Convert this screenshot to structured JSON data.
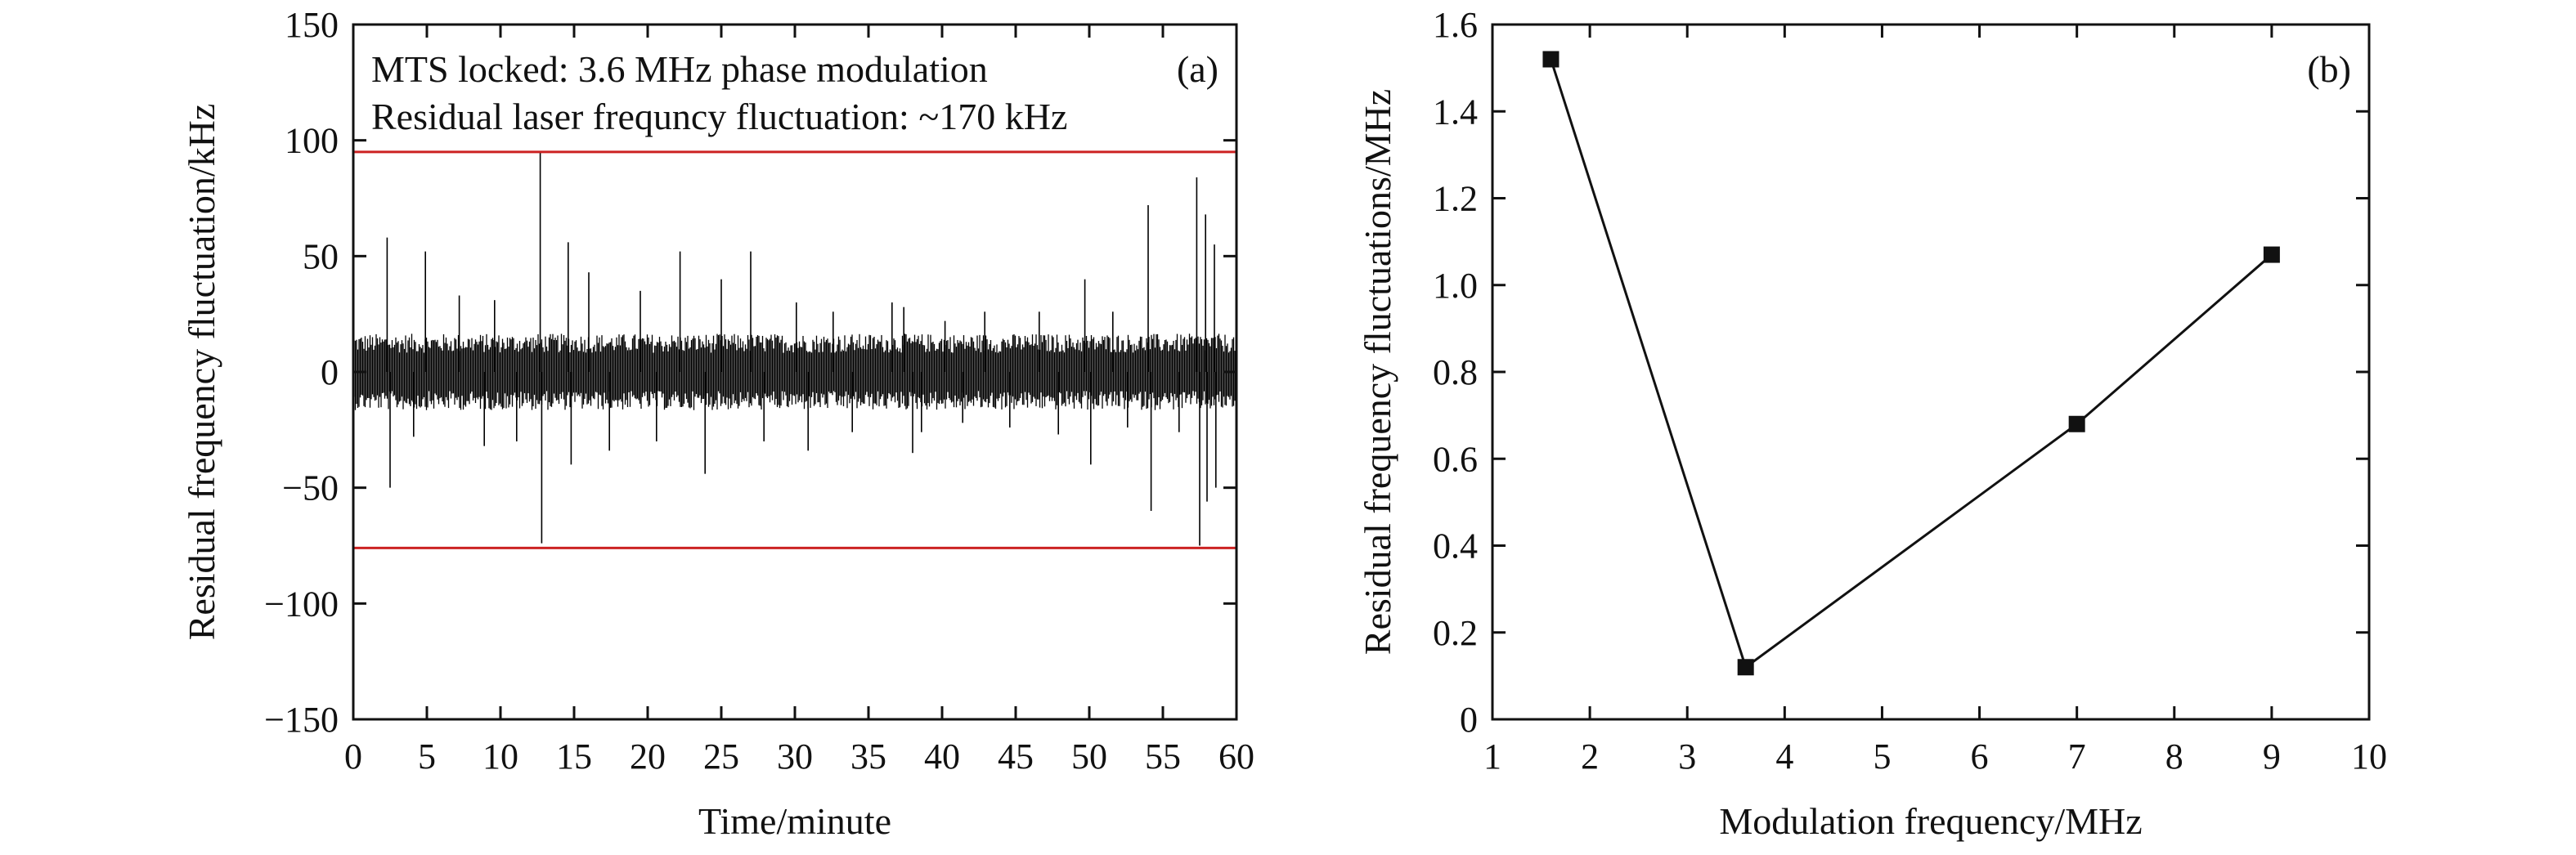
{
  "colors": {
    "axis": "#111111",
    "signal": "#000000",
    "reference_lines": "#cc2222",
    "markers": "#111111"
  },
  "chart_data": [
    {
      "type": "line",
      "panel_label": "(a)",
      "xlabel": "Time/minute",
      "ylabel": "Residual frequency fluctuation/kHz",
      "xlim": [
        0,
        60
      ],
      "ylim": [
        -150,
        150
      ],
      "xticks": [
        0,
        5,
        10,
        15,
        20,
        25,
        30,
        35,
        40,
        45,
        50,
        55,
        60
      ],
      "yticks": [
        -150,
        -100,
        -50,
        0,
        50,
        100,
        150
      ],
      "xtick_labels": [
        "0",
        "5",
        "10",
        "15",
        "20",
        "25",
        "30",
        "35",
        "40",
        "45",
        "50",
        "55",
        "60"
      ],
      "ytick_labels": [
        "−150",
        "−100",
        "−50",
        "0",
        "50",
        "100",
        "150"
      ],
      "annotations": [
        "MTS locked: 3.6 MHz phase modulation",
        "Residual laser frequncy fluctuation: ~170 kHz"
      ],
      "reference_lines": [
        95,
        -76
      ],
      "noise_band": {
        "upper": 15,
        "lower": -15
      },
      "spikes": [
        {
          "x": 2.3,
          "y": 58
        },
        {
          "x": 2.5,
          "y": -50
        },
        {
          "x": 4.1,
          "y": -28
        },
        {
          "x": 4.9,
          "y": 52
        },
        {
          "x": 7.2,
          "y": 33
        },
        {
          "x": 8.9,
          "y": -32
        },
        {
          "x": 9.6,
          "y": 31
        },
        {
          "x": 11.1,
          "y": -30
        },
        {
          "x": 12.7,
          "y": 95
        },
        {
          "x": 12.8,
          "y": -74
        },
        {
          "x": 14.6,
          "y": 56
        },
        {
          "x": 14.8,
          "y": -40
        },
        {
          "x": 16.0,
          "y": 43
        },
        {
          "x": 17.4,
          "y": -34
        },
        {
          "x": 19.5,
          "y": 35
        },
        {
          "x": 20.6,
          "y": -30
        },
        {
          "x": 22.2,
          "y": 52
        },
        {
          "x": 23.9,
          "y": -44
        },
        {
          "x": 25.0,
          "y": 40
        },
        {
          "x": 27.0,
          "y": 52
        },
        {
          "x": 27.9,
          "y": -30
        },
        {
          "x": 30.1,
          "y": 30
        },
        {
          "x": 30.9,
          "y": -34
        },
        {
          "x": 32.6,
          "y": 26
        },
        {
          "x": 33.9,
          "y": -26
        },
        {
          "x": 36.6,
          "y": 30
        },
        {
          "x": 37.4,
          "y": 28
        },
        {
          "x": 38.0,
          "y": -35
        },
        {
          "x": 38.6,
          "y": -26
        },
        {
          "x": 40.2,
          "y": 22
        },
        {
          "x": 41.4,
          "y": -22
        },
        {
          "x": 42.9,
          "y": 26
        },
        {
          "x": 44.6,
          "y": -24
        },
        {
          "x": 46.6,
          "y": 26
        },
        {
          "x": 47.9,
          "y": -27
        },
        {
          "x": 49.7,
          "y": 40
        },
        {
          "x": 50.1,
          "y": -40
        },
        {
          "x": 51.6,
          "y": 26
        },
        {
          "x": 52.6,
          "y": -24
        },
        {
          "x": 54.0,
          "y": 72
        },
        {
          "x": 54.2,
          "y": -60
        },
        {
          "x": 56.1,
          "y": -26
        },
        {
          "x": 57.3,
          "y": 84
        },
        {
          "x": 57.5,
          "y": -75
        },
        {
          "x": 57.9,
          "y": 68
        },
        {
          "x": 58.0,
          "y": -56
        },
        {
          "x": 58.5,
          "y": 55
        },
        {
          "x": 58.6,
          "y": -50
        }
      ]
    },
    {
      "type": "line",
      "panel_label": "(b)",
      "xlabel": "Modulation frequency/MHz",
      "ylabel": "Residual frequency fluctuations/MHz",
      "xlim": [
        1,
        10
      ],
      "ylim": [
        0,
        1.6
      ],
      "xticks": [
        1,
        2,
        3,
        4,
        5,
        6,
        7,
        8,
        9,
        10
      ],
      "yticks": [
        0,
        0.2,
        0.4,
        0.6,
        0.8,
        1.0,
        1.2,
        1.4,
        1.6
      ],
      "xtick_labels": [
        "1",
        "2",
        "3",
        "4",
        "5",
        "6",
        "7",
        "8",
        "9",
        "10"
      ],
      "ytick_labels": [
        "0",
        "0.2",
        "0.4",
        "0.6",
        "0.8",
        "1.0",
        "1.2",
        "1.4",
        "1.6"
      ],
      "x": [
        1.6,
        3.6,
        7.0,
        9.0
      ],
      "y": [
        1.52,
        0.12,
        0.68,
        1.07
      ],
      "marker": "square"
    }
  ]
}
